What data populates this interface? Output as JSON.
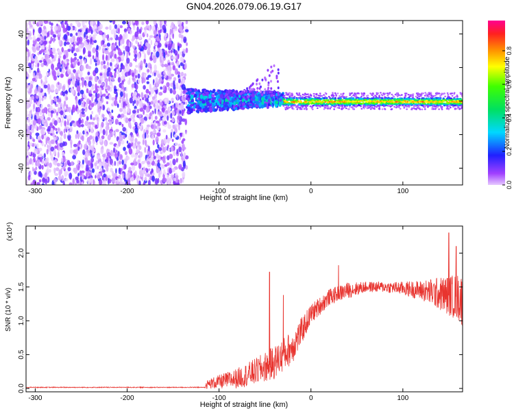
{
  "title": "GN04.2026.079.06.19.G17",
  "chart_data": [
    {
      "type": "heatmap",
      "xlabel": "Height of straight line (km)",
      "ylabel": "Frequency (Hz)",
      "xlim": [
        -310,
        165
      ],
      "ylim": [
        -50,
        48
      ],
      "x_ticks": [
        -300,
        -200,
        -100,
        0,
        100
      ],
      "x_tick_labels": [
        "-300",
        "-200",
        "-100",
        "0",
        "100"
      ],
      "y_ticks": [
        -40,
        -20,
        0,
        20,
        40
      ],
      "y_tick_labels": [
        "-40",
        "-20",
        "0",
        "20",
        "40"
      ],
      "colorbar": {
        "label": "Normalized spectral amplitude",
        "range": [
          0,
          0.98
        ],
        "ticks": [
          0.0,
          0.2,
          0.4,
          0.6,
          0.8
        ],
        "tick_labels": [
          "0.0",
          "0.2",
          "0.4",
          "0.6",
          "0.8"
        ],
        "colormap": "rainbow (magenta-violet-blue-cyan-green-yellow-orange-red)"
      },
      "regions": [
        {
          "x_range": [
            -310,
            -135
          ],
          "freq_range": [
            -50,
            48
          ],
          "description": "diffuse noise",
          "amplitude": [
            0.0,
            0.15
          ]
        },
        {
          "x_range": [
            -135,
            -30
          ],
          "freq_range": [
            -8,
            6
          ],
          "description": "emerging signal band",
          "amplitude": [
            0.15,
            0.6
          ]
        },
        {
          "x_range": [
            -30,
            165
          ],
          "freq_range": [
            -3,
            2
          ],
          "description": "strong coherent line near 0 Hz",
          "amplitude": [
            0.5,
            0.98
          ]
        }
      ]
    },
    {
      "type": "line",
      "xlabel": "Height of straight line (km)",
      "ylabel": "SNR (10 * v/v)",
      "y_multiplier": "(x10⁴)",
      "xlim": [
        -310,
        165
      ],
      "ylim": [
        -0.05,
        2.4
      ],
      "x_ticks": [
        -300,
        -200,
        -100,
        0,
        100
      ],
      "x_tick_labels": [
        "-300",
        "-200",
        "-100",
        "0",
        "100"
      ],
      "y_ticks": [
        0.0,
        0.5,
        1.0,
        1.5,
        2.0
      ],
      "y_tick_labels": [
        "0.0",
        "0.5",
        "1.0",
        "1.5",
        "2.0"
      ],
      "series_color": "#e8342f",
      "envelope": {
        "x": [
          -310,
          -250,
          -150,
          -120,
          -110,
          -80,
          -60,
          -40,
          -20,
          -10,
          0,
          20,
          40,
          60,
          80,
          100,
          120,
          140,
          160,
          165
        ],
        "mean": [
          0.01,
          0.01,
          0.01,
          0.02,
          0.07,
          0.15,
          0.25,
          0.38,
          0.62,
          0.85,
          1.1,
          1.35,
          1.45,
          1.5,
          1.5,
          1.48,
          1.45,
          1.4,
          1.35,
          1.3
        ],
        "spread": [
          0.01,
          0.01,
          0.01,
          0.02,
          0.08,
          0.15,
          0.2,
          0.25,
          0.25,
          0.2,
          0.15,
          0.12,
          0.12,
          0.08,
          0.08,
          0.1,
          0.15,
          0.25,
          0.35,
          0.4
        ]
      },
      "peaks": [
        {
          "x": -45,
          "y": 1.72
        },
        {
          "x": -30,
          "y": 1.38
        },
        {
          "x": 30,
          "y": 1.82
        },
        {
          "x": 150,
          "y": 2.3
        },
        {
          "x": 158,
          "y": 2.1
        }
      ]
    }
  ]
}
